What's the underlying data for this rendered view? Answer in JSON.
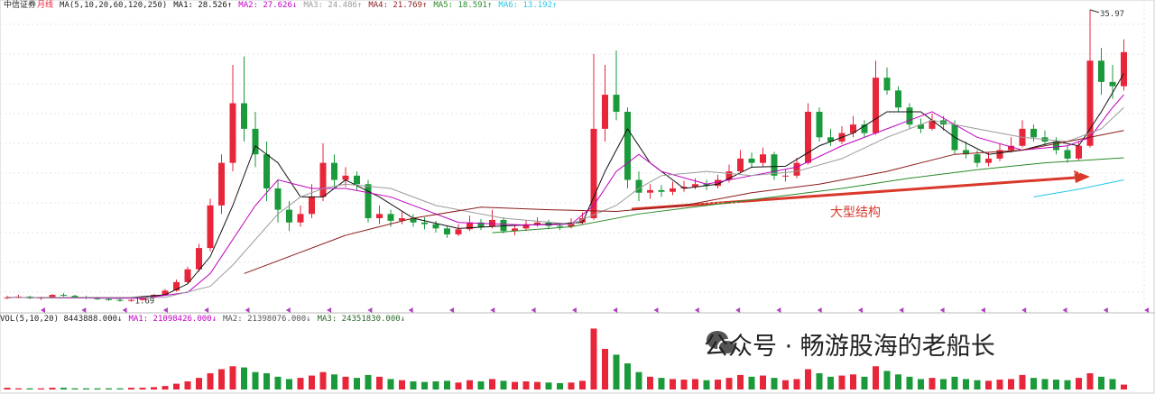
{
  "header": {
    "stock": "中信证券",
    "period": "月线",
    "ma_spec": "MA(5,10,20,60,120,250)"
  },
  "chart_data": [
    {
      "type": "candlestick",
      "up_color": "#e8263a",
      "down_color": "#1a9a3a",
      "ylim": [
        0.6,
        36.7
      ],
      "max_label": 35.97,
      "min_label": 1.69,
      "annotation": "大型结构",
      "open": [
        2.1,
        2.2,
        2.3,
        2.1,
        2.2,
        2.5,
        2.4,
        2.2,
        2.1,
        2.0,
        1.9,
        1.8,
        1.9,
        2.2,
        2.5,
        3.0,
        4.0,
        5.5,
        8.0,
        13.0,
        18.0,
        25.0,
        22.0,
        19.0,
        15.0,
        12.5,
        11.0,
        12.0,
        14.0,
        18.0,
        16.0,
        16.5,
        15.5,
        11.5,
        12.0,
        11.2,
        11.5,
        11.0,
        10.8,
        10.3,
        9.6,
        10.2,
        11.0,
        10.5,
        11.3,
        10.0,
        10.3,
        10.8,
        11.0,
        10.6,
        10.5,
        11.0,
        11.5,
        22.0,
        26.0,
        24.0,
        16.0,
        14.5,
        14.8,
        14.6,
        15.0,
        15.2,
        15.5,
        15.3,
        16.0,
        17.0,
        18.5,
        18.0,
        19.0,
        16.5,
        16.5,
        18.0,
        24.0,
        21.0,
        20.5,
        21.5,
        22.5,
        21.5,
        28.0,
        26.5,
        24.5,
        22.5,
        22.0,
        23.0,
        22.5,
        19.5,
        19.0,
        18.0,
        18.5,
        19.5,
        20.0,
        22.0,
        21.0,
        20.5,
        19.5,
        18.5,
        20.0,
        30.0,
        27.5,
        27.0
      ],
      "high": [
        2.4,
        2.5,
        2.4,
        2.3,
        2.6,
        2.7,
        2.5,
        2.4,
        2.3,
        2.2,
        2.1,
        2.0,
        2.3,
        2.6,
        3.2,
        4.3,
        5.8,
        8.5,
        13.8,
        19.0,
        29.5,
        30.5,
        24.0,
        20.5,
        16.0,
        13.5,
        13.0,
        15.5,
        20.3,
        19.0,
        17.5,
        17.0,
        16.0,
        13.0,
        12.5,
        12.3,
        12.0,
        11.6,
        11.2,
        10.6,
        10.8,
        11.8,
        11.4,
        12.5,
        11.6,
        10.8,
        11.3,
        11.6,
        11.3,
        11.0,
        11.5,
        12.2,
        30.8,
        29.5,
        31.2,
        24.5,
        17.0,
        15.5,
        15.4,
        15.8,
        15.9,
        16.2,
        16.0,
        16.6,
        17.8,
        19.5,
        19.2,
        19.8,
        19.3,
        17.2,
        18.6,
        25.0,
        24.5,
        22.0,
        22.3,
        23.5,
        23.0,
        30.0,
        29.2,
        27.0,
        25.0,
        23.2,
        23.8,
        23.5,
        23.0,
        20.5,
        19.5,
        19.2,
        20.3,
        21.0,
        23.0,
        22.5,
        21.8,
        21.0,
        20.0,
        20.5,
        35.97,
        31.5,
        29.5,
        32.5
      ],
      "low": [
        2.0,
        2.1,
        2.0,
        1.9,
        2.1,
        2.3,
        2.1,
        2.0,
        1.9,
        1.8,
        1.7,
        1.69,
        1.8,
        2.1,
        2.4,
        2.9,
        3.8,
        5.2,
        7.6,
        12.0,
        17.0,
        20.5,
        17.5,
        13.5,
        11.0,
        10.0,
        10.5,
        11.5,
        13.5,
        15.0,
        15.2,
        14.8,
        11.0,
        10.8,
        10.5,
        10.8,
        10.5,
        10.2,
        9.8,
        9.2,
        9.4,
        10.0,
        10.1,
        10.3,
        9.7,
        9.5,
        10.0,
        10.5,
        10.2,
        10.1,
        10.3,
        10.8,
        11.3,
        20.5,
        23.0,
        15.0,
        13.5,
        13.8,
        14.0,
        14.2,
        14.6,
        14.9,
        14.8,
        15.0,
        15.7,
        16.8,
        17.4,
        17.6,
        16.0,
        15.8,
        16.2,
        17.8,
        20.5,
        20.0,
        20.2,
        21.0,
        21.0,
        21.3,
        26.0,
        24.0,
        22.0,
        21.5,
        21.8,
        21.8,
        19.0,
        18.5,
        17.5,
        17.6,
        18.2,
        19.2,
        19.8,
        20.5,
        20.0,
        19.0,
        18.0,
        18.3,
        19.8,
        26.0,
        25.5,
        26.5
      ],
      "close": [
        2.2,
        2.3,
        2.1,
        2.2,
        2.5,
        2.4,
        2.2,
        2.1,
        2.0,
        1.9,
        1.8,
        1.9,
        2.2,
        2.5,
        3.0,
        4.0,
        5.5,
        8.0,
        13.0,
        18.0,
        25.0,
        22.0,
        19.0,
        15.0,
        12.5,
        11.0,
        12.0,
        14.0,
        18.0,
        16.0,
        16.5,
        15.5,
        11.5,
        12.0,
        11.2,
        11.5,
        11.0,
        10.8,
        10.3,
        9.6,
        10.2,
        11.0,
        10.5,
        11.3,
        10.0,
        10.3,
        10.8,
        11.0,
        10.6,
        10.5,
        11.0,
        11.5,
        22.0,
        26.0,
        24.0,
        16.0,
        14.5,
        14.8,
        14.6,
        15.0,
        15.2,
        15.5,
        15.3,
        16.0,
        17.0,
        18.5,
        18.0,
        19.0,
        16.5,
        16.5,
        18.0,
        24.0,
        21.0,
        20.5,
        21.5,
        22.5,
        21.5,
        28.0,
        26.5,
        24.5,
        22.5,
        22.0,
        23.0,
        22.5,
        19.5,
        19.0,
        18.0,
        18.5,
        19.5,
        20.0,
        22.0,
        21.0,
        20.5,
        19.5,
        18.5,
        20.0,
        30.0,
        27.5,
        27.0,
        31.0
      ],
      "lines": [
        {
          "label": "MA1: 28.526↑",
          "color": "#111111",
          "x": [
            0,
            10,
            14,
            16,
            18,
            20,
            22,
            24,
            26,
            28,
            30,
            33,
            36,
            40,
            44,
            48,
            51,
            53,
            55,
            57,
            60,
            63,
            66,
            69,
            72,
            75,
            78,
            81,
            84,
            87,
            90,
            93,
            95,
            97,
            99
          ],
          "values": [
            2.2,
            2.1,
            2.5,
            3.8,
            7,
            13,
            20,
            18,
            14,
            14,
            16,
            14,
            11.5,
            10.3,
            10.6,
            10.8,
            11,
            17,
            22,
            18,
            15,
            15.5,
            17.5,
            17.6,
            20,
            21.5,
            24,
            24,
            21,
            19,
            19.5,
            20.5,
            20,
            24,
            28.5
          ]
        },
        {
          "label": "MA2: 27.626↓",
          "color": "#c000c0",
          "x": [
            0,
            12,
            16,
            18,
            20,
            22,
            24,
            27,
            30,
            34,
            40,
            46,
            50,
            52,
            54,
            56,
            58,
            62,
            66,
            70,
            74,
            78,
            82,
            86,
            90,
            94,
            96,
            98,
            99
          ],
          "values": [
            2.2,
            2.1,
            2.8,
            5,
            9,
            13,
            16,
            15,
            15,
            14,
            11,
            10.7,
            10.8,
            13,
            17,
            19,
            17,
            15.5,
            16.5,
            17.5,
            20,
            22,
            24,
            21,
            19.5,
            20,
            21,
            24.5,
            26
          ]
        },
        {
          "label": "MA3: 24.486↑",
          "color": "#9a9a9a",
          "x": [
            0,
            14,
            18,
            20,
            22,
            24,
            26,
            28,
            30,
            34,
            38,
            44,
            50,
            54,
            56,
            58,
            62,
            66,
            70,
            74,
            78,
            82,
            86,
            90,
            94,
            97,
            99
          ],
          "values": [
            2.2,
            2.2,
            3.5,
            6,
            9,
            12,
            14,
            15,
            15.5,
            15,
            13,
            11.5,
            10.8,
            13,
            15,
            16.5,
            17,
            16.5,
            17,
            18.5,
            21,
            23,
            22,
            21,
            20.5,
            22,
            24.5
          ]
        },
        {
          "label": "MA4: 21.769↑",
          "color": "#8b1a1a",
          "x": [
            21,
            25,
            30,
            36,
            42,
            48,
            54,
            60,
            66,
            72,
            78,
            84,
            90,
            96,
            99
          ],
          "values": [
            5,
            7,
            9.5,
            11.5,
            12.8,
            12.5,
            12.3,
            13,
            14.5,
            15.5,
            17,
            19,
            19.5,
            21,
            21.8
          ]
        },
        {
          "label": "MA5: 18.591↑",
          "color": "#2a8a2a",
          "x": [
            43,
            50,
            56,
            62,
            68,
            74,
            80,
            86,
            92,
            99
          ],
          "values": [
            9.8,
            10.5,
            12,
            13,
            14,
            15,
            16.2,
            17.2,
            18,
            18.6
          ]
        },
        {
          "label": "MA6: 13.192↑",
          "color": "#22c8e8",
          "x": [
            91,
            95,
            99
          ],
          "values": [
            14.0,
            14.9,
            16.0
          ]
        }
      ]
    },
    {
      "type": "volume",
      "label": "VOL(5,10,20) 8443888.000↓",
      "ma_labels": [
        {
          "text": "MA1: 21098426.000↓",
          "color": "#c000c0"
        },
        {
          "text": "MA2: 21398076.000↓",
          "color": "#555555"
        },
        {
          "text": "MA3: 24351830.000↓",
          "color": "#2a6a2a"
        }
      ],
      "ylim": [
        0,
        115000000
      ],
      "values": [
        3000000,
        2000000,
        2000000,
        2000000,
        3000000,
        3000000,
        2000000,
        2000000,
        2000000,
        2000000,
        2000000,
        3000000,
        3000000,
        4000000,
        6000000,
        10000000,
        14000000,
        20000000,
        28000000,
        35000000,
        40000000,
        38000000,
        30000000,
        28000000,
        22000000,
        18000000,
        20000000,
        24000000,
        30000000,
        26000000,
        22000000,
        20000000,
        25000000,
        22000000,
        18000000,
        16000000,
        14000000,
        13000000,
        14000000,
        15000000,
        12000000,
        16000000,
        14000000,
        18000000,
        15000000,
        13000000,
        14000000,
        13000000,
        12000000,
        11000000,
        12000000,
        15000000,
        105000000,
        70000000,
        60000000,
        45000000,
        30000000,
        22000000,
        20000000,
        18000000,
        17000000,
        18000000,
        16000000,
        17000000,
        20000000,
        25000000,
        22000000,
        24000000,
        20000000,
        16000000,
        18000000,
        35000000,
        28000000,
        22000000,
        24000000,
        26000000,
        22000000,
        40000000,
        32000000,
        26000000,
        22000000,
        18000000,
        20000000,
        18000000,
        22000000,
        18000000,
        16000000,
        15000000,
        17000000,
        18000000,
        25000000,
        20000000,
        18000000,
        17000000,
        16000000,
        20000000,
        28000000,
        22000000,
        18000000,
        8443888
      ]
    }
  ],
  "watermark": "公众号 · 畅游股海的老船长"
}
